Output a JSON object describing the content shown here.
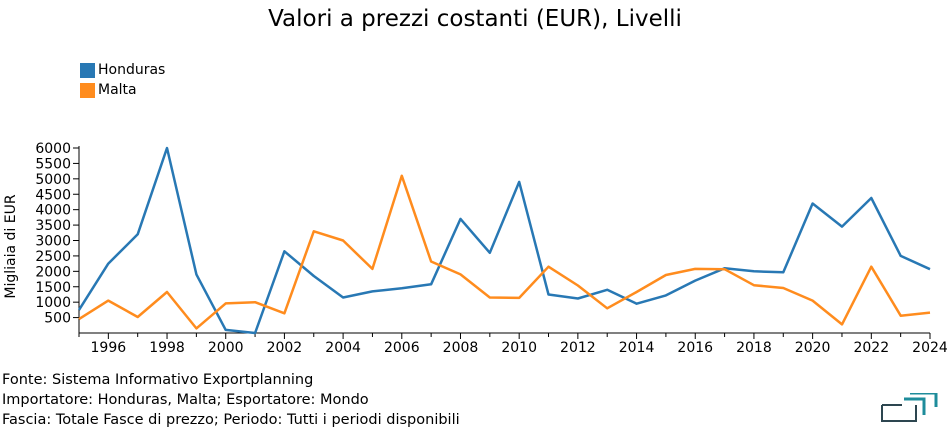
{
  "colors": {
    "Honduras": "#2878b4",
    "Malta": "#ff8c1e",
    "logo": "#1e8c9b",
    "logo_dark": "#2d4650"
  },
  "chart_data": {
    "type": "line",
    "title": "Valori a prezzi costanti (EUR), Livelli",
    "ylabel": "Migliaia di EUR",
    "xlabel": "",
    "xlim": [
      1995,
      2024
    ],
    "ylim": [
      0,
      6000
    ],
    "x_ticks": [
      1996,
      1998,
      2000,
      2002,
      2004,
      2006,
      2008,
      2010,
      2012,
      2014,
      2016,
      2018,
      2020,
      2022,
      2024
    ],
    "y_ticks": [
      500,
      1000,
      1500,
      2000,
      2500,
      3000,
      3500,
      4000,
      4500,
      5000,
      5500,
      6000
    ],
    "legend_position": "top-left",
    "x": [
      1995,
      1996,
      1997,
      1998,
      1999,
      2000,
      2001,
      2002,
      2003,
      2004,
      2005,
      2006,
      2007,
      2008,
      2009,
      2010,
      2011,
      2012,
      2013,
      2014,
      2015,
      2016,
      2017,
      2018,
      2019,
      2020,
      2021,
      2022,
      2023,
      2024
    ],
    "series": [
      {
        "name": "Honduras",
        "values": [
          750,
          2250,
          3200,
          6000,
          1900,
          100,
          0,
          2650,
          1850,
          1150,
          1350,
          1450,
          1580,
          3700,
          2600,
          4900,
          1250,
          1120,
          1400,
          950,
          1220,
          1700,
          2100,
          2000,
          1970,
          4200,
          3450,
          4380,
          2500,
          2070
        ]
      },
      {
        "name": "Malta",
        "values": [
          450,
          1050,
          520,
          1330,
          150,
          960,
          1000,
          640,
          3300,
          3000,
          2080,
          5100,
          2320,
          1900,
          1150,
          1140,
          2150,
          1540,
          800,
          1330,
          1880,
          2080,
          2070,
          1550,
          1460,
          1050,
          280,
          2150,
          560,
          660
        ]
      }
    ]
  },
  "footer": {
    "line1": "Fonte: Sistema Informativo Exportplanning",
    "line2": "Importatore: Honduras, Malta; Esportatore: Mondo",
    "line3": "Fascia: Totale Fasce di prezzo; Periodo: Tutti i periodi disponibili"
  }
}
